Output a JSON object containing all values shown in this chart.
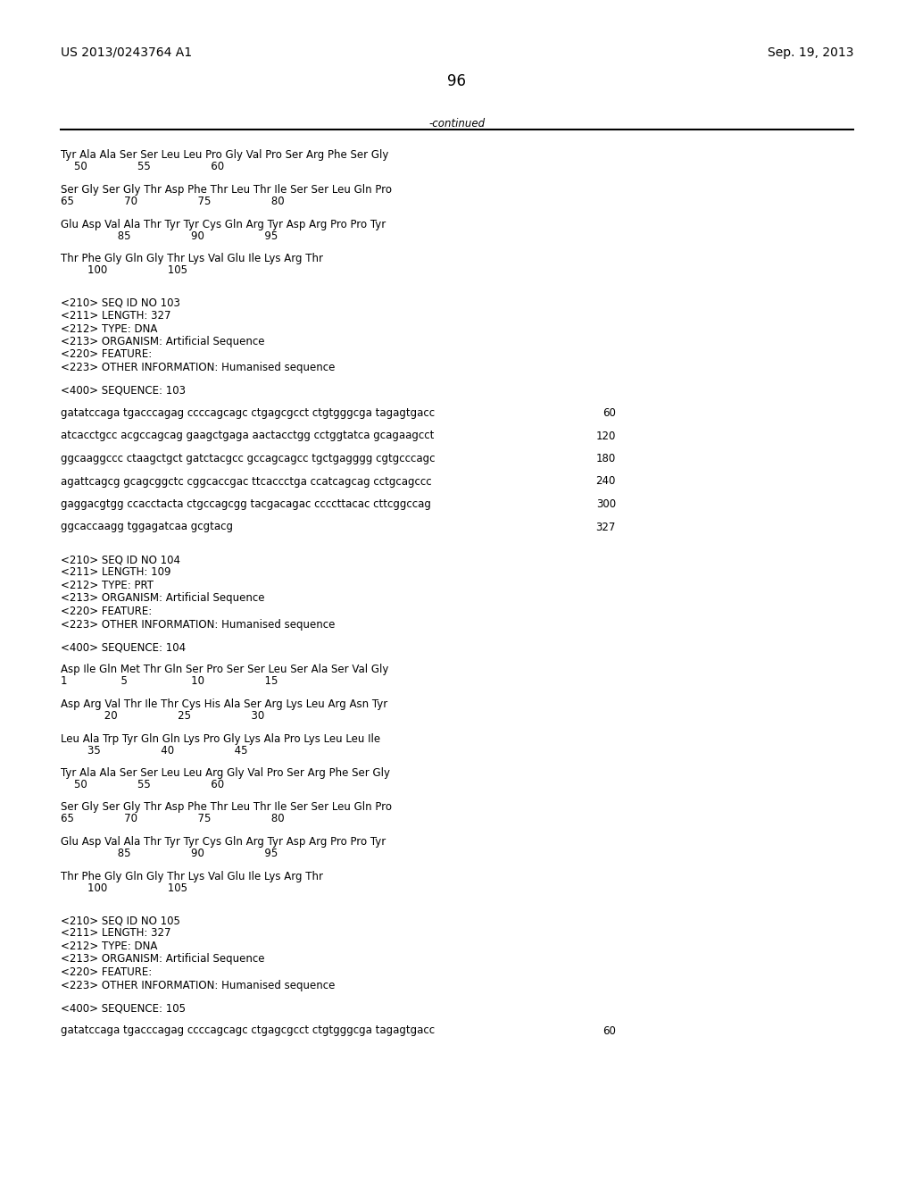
{
  "background_color": "#ffffff",
  "left_header": "US 2013/0243764 A1",
  "right_header": "Sep. 19, 2013",
  "page_number": "96",
  "continued_label": "-continued",
  "header_font_size": 10,
  "page_num_font_size": 12,
  "mono_font_size": 8.5,
  "lines": [
    {
      "type": "mono",
      "text": "Tyr Ala Ala Ser Ser Leu Leu Pro Gly Val Pro Ser Arg Phe Ser Gly"
    },
    {
      "type": "mono_nums",
      "text": "    50               55                  60"
    },
    {
      "type": "blank"
    },
    {
      "type": "mono",
      "text": "Ser Gly Ser Gly Thr Asp Phe Thr Leu Thr Ile Ser Ser Leu Gln Pro"
    },
    {
      "type": "mono_nums",
      "text": "65               70                  75                  80"
    },
    {
      "type": "blank"
    },
    {
      "type": "mono",
      "text": "Glu Asp Val Ala Thr Tyr Tyr Cys Gln Arg Tyr Asp Arg Pro Pro Tyr"
    },
    {
      "type": "mono_nums",
      "text": "                 85                  90                  95"
    },
    {
      "type": "blank"
    },
    {
      "type": "mono",
      "text": "Thr Phe Gly Gln Gly Thr Lys Val Glu Ile Lys Arg Thr"
    },
    {
      "type": "mono_nums",
      "text": "        100                  105"
    },
    {
      "type": "blank"
    },
    {
      "type": "blank"
    },
    {
      "type": "mono",
      "text": "<210> SEQ ID NO 103"
    },
    {
      "type": "mono",
      "text": "<211> LENGTH: 327"
    },
    {
      "type": "mono",
      "text": "<212> TYPE: DNA"
    },
    {
      "type": "mono",
      "text": "<213> ORGANISM: Artificial Sequence"
    },
    {
      "type": "mono",
      "text": "<220> FEATURE:"
    },
    {
      "type": "mono",
      "text": "<223> OTHER INFORMATION: Humanised sequence"
    },
    {
      "type": "blank"
    },
    {
      "type": "mono",
      "text": "<400> SEQUENCE: 103"
    },
    {
      "type": "blank"
    },
    {
      "type": "mono_num_right",
      "text": "gatatccaga tgacccagag ccccagcagc ctgagcgcct ctgtgggcga tagagtgacc",
      "num": "60"
    },
    {
      "type": "blank"
    },
    {
      "type": "mono_num_right",
      "text": "atcacctgcc acgccagcag gaagctgaga aactacctgg cctggtatca gcagaagcct",
      "num": "120"
    },
    {
      "type": "blank"
    },
    {
      "type": "mono_num_right",
      "text": "ggcaaggccc ctaagctgct gatctacgcc gccagcagcc tgctgagggg cgtgcccagc",
      "num": "180"
    },
    {
      "type": "blank"
    },
    {
      "type": "mono_num_right",
      "text": "agattcagcg gcagcggctc cggcaccgac ttcaccctga ccatcagcag cctgcagccc",
      "num": "240"
    },
    {
      "type": "blank"
    },
    {
      "type": "mono_num_right",
      "text": "gaggacgtgg ccacctacta ctgccagcgg tacgacagac ccccttacac cttcggccag",
      "num": "300"
    },
    {
      "type": "blank"
    },
    {
      "type": "mono_num_right",
      "text": "ggcaccaagg tggagatcaa gcgtacg",
      "num": "327"
    },
    {
      "type": "blank"
    },
    {
      "type": "blank"
    },
    {
      "type": "mono",
      "text": "<210> SEQ ID NO 104"
    },
    {
      "type": "mono",
      "text": "<211> LENGTH: 109"
    },
    {
      "type": "mono",
      "text": "<212> TYPE: PRT"
    },
    {
      "type": "mono",
      "text": "<213> ORGANISM: Artificial Sequence"
    },
    {
      "type": "mono",
      "text": "<220> FEATURE:"
    },
    {
      "type": "mono",
      "text": "<223> OTHER INFORMATION: Humanised sequence"
    },
    {
      "type": "blank"
    },
    {
      "type": "mono",
      "text": "<400> SEQUENCE: 104"
    },
    {
      "type": "blank"
    },
    {
      "type": "mono",
      "text": "Asp Ile Gln Met Thr Gln Ser Pro Ser Ser Leu Ser Ala Ser Val Gly"
    },
    {
      "type": "mono_nums",
      "text": "1                5                   10                  15"
    },
    {
      "type": "blank"
    },
    {
      "type": "mono",
      "text": "Asp Arg Val Thr Ile Thr Cys His Ala Ser Arg Lys Leu Arg Asn Tyr"
    },
    {
      "type": "mono_nums",
      "text": "             20                  25                  30"
    },
    {
      "type": "blank"
    },
    {
      "type": "mono",
      "text": "Leu Ala Trp Tyr Gln Gln Lys Pro Gly Lys Ala Pro Lys Leu Leu Ile"
    },
    {
      "type": "mono_nums",
      "text": "        35                  40                  45"
    },
    {
      "type": "blank"
    },
    {
      "type": "mono",
      "text": "Tyr Ala Ala Ser Ser Leu Leu Arg Gly Val Pro Ser Arg Phe Ser Gly"
    },
    {
      "type": "mono_nums",
      "text": "    50               55                  60"
    },
    {
      "type": "blank"
    },
    {
      "type": "mono",
      "text": "Ser Gly Ser Gly Thr Asp Phe Thr Leu Thr Ile Ser Ser Leu Gln Pro"
    },
    {
      "type": "mono_nums",
      "text": "65               70                  75                  80"
    },
    {
      "type": "blank"
    },
    {
      "type": "mono",
      "text": "Glu Asp Val Ala Thr Tyr Tyr Cys Gln Arg Tyr Asp Arg Pro Pro Tyr"
    },
    {
      "type": "mono_nums",
      "text": "                 85                  90                  95"
    },
    {
      "type": "blank"
    },
    {
      "type": "mono",
      "text": "Thr Phe Gly Gln Gly Thr Lys Val Glu Ile Lys Arg Thr"
    },
    {
      "type": "mono_nums",
      "text": "        100                  105"
    },
    {
      "type": "blank"
    },
    {
      "type": "blank"
    },
    {
      "type": "mono",
      "text": "<210> SEQ ID NO 105"
    },
    {
      "type": "mono",
      "text": "<211> LENGTH: 327"
    },
    {
      "type": "mono",
      "text": "<212> TYPE: DNA"
    },
    {
      "type": "mono",
      "text": "<213> ORGANISM: Artificial Sequence"
    },
    {
      "type": "mono",
      "text": "<220> FEATURE:"
    },
    {
      "type": "mono",
      "text": "<223> OTHER INFORMATION: Humanised sequence"
    },
    {
      "type": "blank"
    },
    {
      "type": "mono",
      "text": "<400> SEQUENCE: 105"
    },
    {
      "type": "blank"
    },
    {
      "type": "mono_num_right",
      "text": "gatatccaga tgacccagag ccccagcagc ctgagcgcct ctgtgggcga tagagtgacc",
      "num": "60"
    }
  ]
}
